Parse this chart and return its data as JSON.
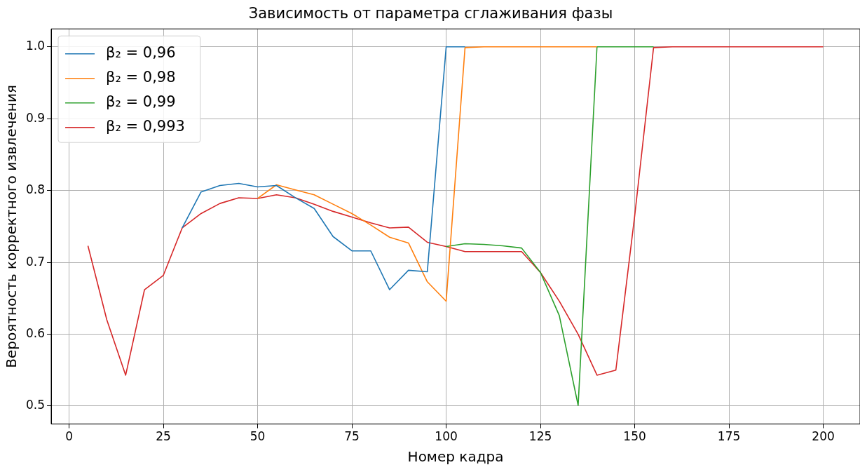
{
  "chart_data": {
    "type": "line",
    "title": "Зависимость от параметра сглаживания фазы",
    "xlabel": "Номер кадра",
    "ylabel": "Вероятность корректного извлечения",
    "x": [
      5,
      10,
      15,
      20,
      25,
      30,
      35,
      40,
      45,
      50,
      55,
      60,
      65,
      70,
      75,
      80,
      85,
      90,
      95,
      100,
      105,
      110,
      115,
      120,
      125,
      130,
      135,
      140,
      145,
      150,
      155,
      160,
      165,
      170,
      175,
      180,
      185,
      190,
      195,
      200
    ],
    "series": [
      {
        "name": "β₂ = 0,96",
        "color": "#1f77b4",
        "values": [
          null,
          null,
          null,
          null,
          null,
          0.748,
          0.798,
          0.807,
          0.81,
          0.805,
          0.807,
          0.79,
          0.775,
          0.736,
          0.716,
          0.716,
          0.662,
          0.689,
          0.687,
          1.0,
          1.0,
          null,
          null,
          null,
          null,
          null,
          null,
          null,
          null,
          null,
          null,
          null,
          null,
          null,
          null,
          null,
          null,
          null,
          null,
          null
        ]
      },
      {
        "name": "β₂ = 0,98",
        "color": "#ff7f0e",
        "values": [
          null,
          null,
          null,
          null,
          null,
          null,
          null,
          null,
          null,
          0.789,
          0.808,
          0.801,
          0.794,
          0.781,
          0.768,
          0.752,
          0.735,
          0.727,
          0.673,
          0.646,
          0.999,
          1.0,
          1.0,
          1.0,
          1.0,
          1.0,
          1.0,
          1.0,
          null,
          null,
          null,
          null,
          null,
          null,
          null,
          null,
          null,
          null,
          null,
          null
        ]
      },
      {
        "name": "β₂ = 0,99",
        "color": "#2ca02c",
        "values": [
          null,
          null,
          null,
          null,
          null,
          null,
          null,
          null,
          null,
          null,
          null,
          null,
          null,
          null,
          null,
          null,
          null,
          null,
          null,
          0.722,
          0.726,
          0.725,
          0.723,
          0.72,
          0.686,
          0.626,
          0.501,
          1.0,
          1.0,
          1.0,
          1.0,
          null,
          null,
          null,
          null,
          null,
          null,
          null,
          null,
          null
        ]
      },
      {
        "name": "β₂ = 0,993",
        "color": "#d62728",
        "values": [
          0.723,
          0.62,
          0.543,
          0.662,
          0.682,
          0.748,
          0.768,
          0.782,
          0.79,
          0.789,
          0.794,
          0.79,
          0.781,
          0.771,
          0.763,
          0.755,
          0.748,
          0.749,
          0.728,
          0.722,
          0.715,
          0.715,
          0.715,
          0.715,
          0.686,
          0.646,
          0.6,
          0.543,
          0.55,
          0.765,
          0.999,
          1.0,
          1.0,
          1.0,
          1.0,
          1.0,
          1.0,
          1.0,
          1.0,
          1.0
        ]
      }
    ],
    "xlim": [
      -4.75,
      209.75
    ],
    "xticks": [
      0,
      25,
      50,
      75,
      100,
      125,
      150,
      175,
      200
    ],
    "ylim": [
      0.475,
      1.025
    ],
    "yticks": [
      0.5,
      0.6,
      0.7,
      0.8,
      0.9,
      {
        "value": 1,
        "label": "1.0"
      }
    ],
    "grid": true,
    "legend": "top left",
    "marker": "none",
    "line_style": "solid"
  }
}
